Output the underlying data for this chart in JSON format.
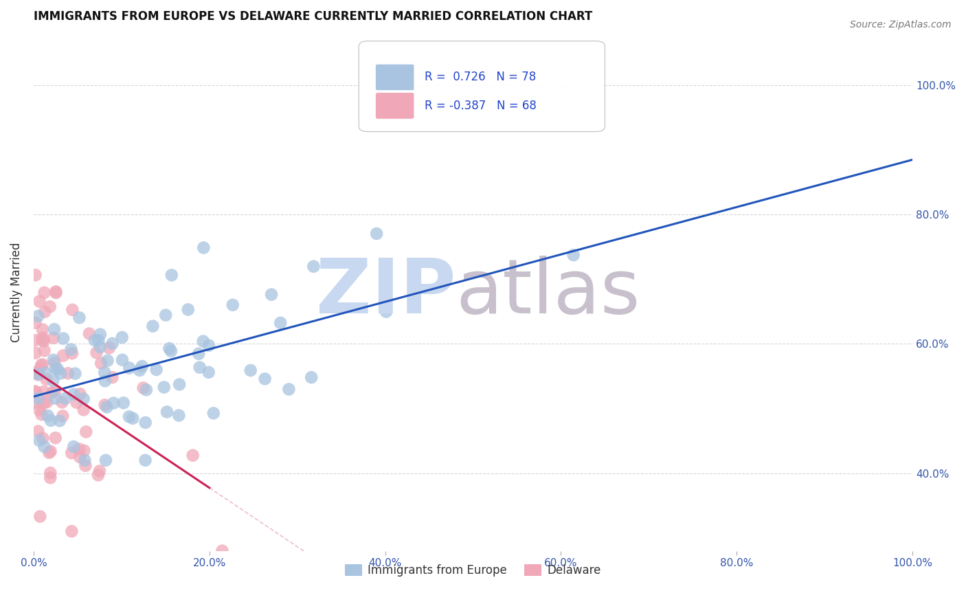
{
  "title": "IMMIGRANTS FROM EUROPE VS DELAWARE CURRENTLY MARRIED CORRELATION CHART",
  "source": "Source: ZipAtlas.com",
  "ylabel": "Currently Married",
  "xlim": [
    0.0,
    100.0
  ],
  "ylim": [
    28.0,
    108.0
  ],
  "legend_labels": [
    "Immigrants from Europe",
    "Delaware"
  ],
  "R_blue": 0.726,
  "N_blue": 78,
  "R_pink": -0.387,
  "N_pink": 68,
  "blue_color": "#A8C4E0",
  "pink_color": "#F0A8B8",
  "blue_line_color": "#2255BB",
  "pink_line_color": "#CC2255",
  "watermark_zip_color": "#C8D8F0",
  "watermark_atlas_color": "#C8C0CC",
  "background_color": "#FFFFFF",
  "grid_color": "#CCCCCC",
  "title_fontsize": 12,
  "seed": 12345,
  "ytick_vals": [
    40,
    60,
    80,
    100
  ],
  "xtick_vals": [
    0,
    20,
    40,
    60,
    80,
    100
  ]
}
